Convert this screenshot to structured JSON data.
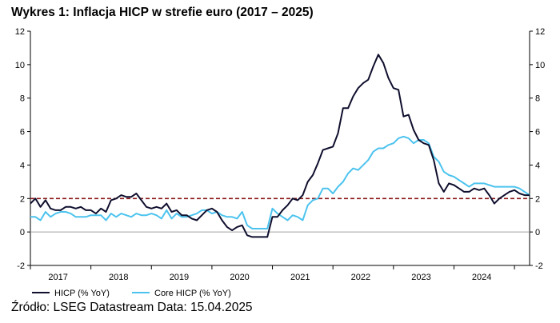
{
  "chart_data": {
    "type": "line",
    "title": "Wykres 1: Inflacja HICP w strefie euro (2017 – 2025)",
    "xlabel": "",
    "ylabel": "",
    "ylim": [
      -2,
      12
    ],
    "yticks": [
      "-2",
      "0",
      "2",
      "4",
      "6",
      "8",
      "10",
      "12"
    ],
    "y_axis_sides": [
      "left",
      "right"
    ],
    "xlim": [
      "2017-01",
      "2025-04"
    ],
    "x_tick_labels": [
      "2017",
      "2018",
      "2019",
      "2020",
      "2021",
      "2022",
      "2023",
      "2024"
    ],
    "grid": false,
    "legend_position": "bottom-left",
    "reference_lines": [
      {
        "y": 2,
        "style": "dashed",
        "color": "#8b1a1a"
      },
      {
        "y": 0,
        "style": "solid",
        "color": "#a0a0a0"
      }
    ],
    "x": [
      "2017-01",
      "2017-02",
      "2017-03",
      "2017-04",
      "2017-05",
      "2017-06",
      "2017-07",
      "2017-08",
      "2017-09",
      "2017-10",
      "2017-11",
      "2017-12",
      "2018-01",
      "2018-02",
      "2018-03",
      "2018-04",
      "2018-05",
      "2018-06",
      "2018-07",
      "2018-08",
      "2018-09",
      "2018-10",
      "2018-11",
      "2018-12",
      "2019-01",
      "2019-02",
      "2019-03",
      "2019-04",
      "2019-05",
      "2019-06",
      "2019-07",
      "2019-08",
      "2019-09",
      "2019-10",
      "2019-11",
      "2019-12",
      "2020-01",
      "2020-02",
      "2020-03",
      "2020-04",
      "2020-05",
      "2020-06",
      "2020-07",
      "2020-08",
      "2020-09",
      "2020-10",
      "2020-11",
      "2020-12",
      "2021-01",
      "2021-02",
      "2021-03",
      "2021-04",
      "2021-05",
      "2021-06",
      "2021-07",
      "2021-08",
      "2021-09",
      "2021-10",
      "2021-11",
      "2021-12",
      "2022-01",
      "2022-02",
      "2022-03",
      "2022-04",
      "2022-05",
      "2022-06",
      "2022-07",
      "2022-08",
      "2022-09",
      "2022-10",
      "2022-11",
      "2022-12",
      "2023-01",
      "2023-02",
      "2023-03",
      "2023-04",
      "2023-05",
      "2023-06",
      "2023-07",
      "2023-08",
      "2023-09",
      "2023-10",
      "2023-11",
      "2023-12",
      "2024-01",
      "2024-02",
      "2024-03",
      "2024-04",
      "2024-05",
      "2024-06",
      "2024-07",
      "2024-08",
      "2024-09",
      "2024-10",
      "2024-11",
      "2024-12",
      "2025-01",
      "2025-02",
      "2025-03",
      "2025-04"
    ],
    "series": [
      {
        "name": "HICP (% YoY)",
        "color": "#0f0f2e",
        "values": [
          1.7,
          2.0,
          1.5,
          1.9,
          1.4,
          1.3,
          1.3,
          1.5,
          1.5,
          1.4,
          1.5,
          1.3,
          1.3,
          1.1,
          1.4,
          1.2,
          1.9,
          2.0,
          2.2,
          2.1,
          2.1,
          2.3,
          1.9,
          1.5,
          1.4,
          1.5,
          1.4,
          1.7,
          1.2,
          1.3,
          1.0,
          1.0,
          0.8,
          0.7,
          1.0,
          1.3,
          1.4,
          1.2,
          0.7,
          0.3,
          0.1,
          0.3,
          0.4,
          -0.2,
          -0.3,
          -0.3,
          -0.3,
          -0.3,
          0.9,
          0.9,
          1.3,
          1.6,
          2.0,
          1.9,
          2.2,
          3.0,
          3.4,
          4.1,
          4.9,
          5.0,
          5.1,
          5.9,
          7.4,
          7.4,
          8.1,
          8.6,
          8.9,
          9.1,
          9.9,
          10.6,
          10.1,
          9.2,
          8.6,
          8.5,
          6.9,
          7.0,
          6.1,
          5.5,
          5.3,
          5.2,
          4.3,
          2.9,
          2.4,
          2.9,
          2.8,
          2.6,
          2.4,
          2.4,
          2.6,
          2.5,
          2.6,
          2.2,
          1.7,
          2.0,
          2.2,
          2.4,
          2.5,
          2.3,
          2.2,
          2.2
        ]
      },
      {
        "name": "Core HICP (% YoY)",
        "color": "#4cc3ee",
        "values": [
          0.9,
          0.9,
          0.7,
          1.2,
          0.9,
          1.1,
          1.2,
          1.2,
          1.1,
          0.9,
          0.9,
          0.9,
          1.0,
          1.0,
          1.0,
          0.7,
          1.1,
          0.9,
          1.1,
          1.0,
          0.9,
          1.1,
          1.0,
          1.0,
          1.1,
          1.0,
          0.8,
          1.3,
          0.8,
          1.1,
          0.9,
          0.9,
          1.0,
          1.1,
          1.3,
          1.3,
          1.1,
          1.2,
          1.0,
          0.9,
          0.9,
          0.8,
          1.2,
          0.4,
          0.2,
          0.2,
          0.2,
          0.2,
          1.4,
          1.1,
          0.9,
          0.7,
          1.0,
          0.9,
          0.7,
          1.6,
          1.9,
          2.0,
          2.6,
          2.6,
          2.3,
          2.7,
          3.0,
          3.5,
          3.8,
          3.7,
          4.0,
          4.3,
          4.8,
          5.0,
          5.0,
          5.2,
          5.3,
          5.6,
          5.7,
          5.6,
          5.3,
          5.5,
          5.5,
          5.3,
          4.5,
          4.2,
          3.6,
          3.4,
          3.3,
          3.1,
          2.9,
          2.7,
          2.9,
          2.9,
          2.9,
          2.8,
          2.7,
          2.7,
          2.7,
          2.7,
          2.7,
          2.6,
          2.4,
          2.2
        ]
      }
    ],
    "source": "Źródło: LSEG Datastream Data: 15.04.2025"
  }
}
